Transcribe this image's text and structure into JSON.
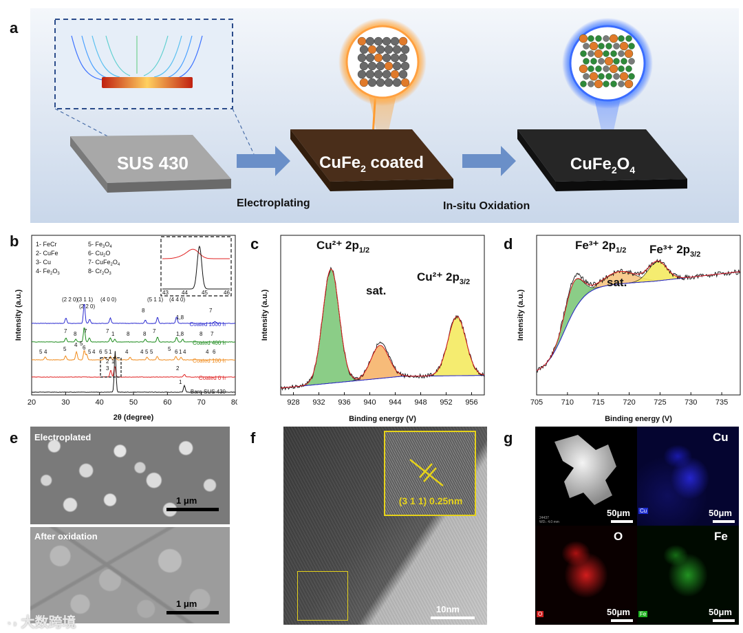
{
  "panels": {
    "a": "a",
    "b": "b",
    "c": "c",
    "d": "d",
    "e": "e",
    "f": "f",
    "g": "g"
  },
  "schematic": {
    "substrate": "SUS 430",
    "coated_prefix": "CuFe",
    "coated_sub": "2",
    "coated_suffix": " coated",
    "oxide_prefix": "CuFe",
    "oxide_sub1": "2",
    "oxide_mid": "O",
    "oxide_sub2": "4",
    "step1": "Electroplating",
    "step2": "In-situ Oxidation"
  },
  "xrd": {
    "ylabel": "Intensity (a.u.)",
    "xlabel": "2θ (degree)",
    "xticks": [
      "20",
      "30",
      "40",
      "50",
      "60",
      "70",
      "80"
    ],
    "legend_left": [
      "1- FeCr",
      "2- CuFe",
      "3- Cu",
      "4- Fe"
    ],
    "legend_left_fe2o3_sub": "2",
    "legend_left_fe2o3_o": "O",
    "legend_left_fe2o3_sub2": "3",
    "legend_right": [
      "5- Fe",
      "6- Cu",
      "7- CuFe",
      "8- Cr"
    ],
    "series": [
      "Coated 1000 h",
      "Coated 400 h",
      "Coated 100 h",
      "Coated 0 h",
      "Bare SUS 430"
    ],
    "hkl": [
      "(2 2 0)",
      "(3 1 1)",
      "(2 2 0)",
      "(4 0 0)",
      "(5 1 1)",
      "(4 4 0)"
    ],
    "inset_ticks": [
      "43",
      "44",
      "45",
      "46"
    ],
    "colors": {
      "s1000": "#2a2ad0",
      "s400": "#1a8a1a",
      "s100": "#f08a1a",
      "s0": "#e02020",
      "bare": "#111111"
    }
  },
  "xps_cu": {
    "peak1": "Cu²⁺ 2p",
    "peak1_sub": "1/2",
    "peak2": "Cu²⁺ 2p",
    "peak2_sub": "3/2",
    "sat": "sat.",
    "ylabel": "Intensity (a.u.)",
    "xlabel": "Binding energy (V)",
    "xticks": [
      "928",
      "932",
      "936",
      "940",
      "944",
      "948",
      "952",
      "956"
    ]
  },
  "xps_fe": {
    "peak1": "Fe³⁺ 2p",
    "peak1_sub": "1/2",
    "peak2": "Fe³⁺ 2p",
    "peak2_sub": "3/2",
    "sat": "sat.",
    "ylabel": "Intensity (a.u.)",
    "xlabel": "Binding energy (V)",
    "xticks": [
      "705",
      "710",
      "715",
      "720",
      "725",
      "730",
      "735"
    ]
  },
  "sem": {
    "top_label": "Electroplated",
    "bottom_label": "After oxidation",
    "scale_top": "1 μm",
    "scale_bottom": "1 μm"
  },
  "tem": {
    "inset_label": "(3 1 1) 0.25nm",
    "scale": "10nm"
  },
  "eds": {
    "cu": "Cu",
    "o": "O",
    "fe": "Fe",
    "cu_tag": "Cu",
    "o_tag": "O",
    "fe_tag": "Fe",
    "scale": "50μm",
    "meta1": "24437",
    "meta2": "WD↓ 4.0 mm"
  },
  "watermark": "大数跨境"
}
